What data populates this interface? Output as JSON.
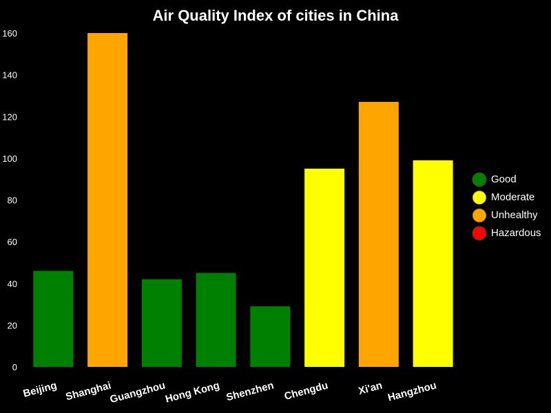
{
  "chart_data": {
    "type": "bar",
    "title": "Air Quality Index of cities in China",
    "xlabel": "",
    "ylabel": "",
    "ylim": [
      0,
      160
    ],
    "yticks": [
      0,
      20,
      40,
      60,
      80,
      100,
      120,
      140,
      160
    ],
    "grid": false,
    "legend_position": "right",
    "categories": [
      "Beijing",
      "Shanghai",
      "Guangzhou",
      "Hong Kong",
      "Shenzhen",
      "Chengdu",
      "Xi'an",
      "Hangzhou"
    ],
    "values": [
      46,
      160,
      42,
      45,
      29,
      95,
      127,
      99
    ],
    "bar_levels": [
      "Good",
      "Unhealthy",
      "Good",
      "Good",
      "Good",
      "Moderate",
      "Unhealthy",
      "Moderate"
    ],
    "legend": [
      {
        "label": "Good",
        "color": "#008000"
      },
      {
        "label": "Moderate",
        "color": "#ffff00"
      },
      {
        "label": "Unhealthy",
        "color": "#ffa500"
      },
      {
        "label": "Hazardous",
        "color": "#ff0000"
      }
    ]
  }
}
